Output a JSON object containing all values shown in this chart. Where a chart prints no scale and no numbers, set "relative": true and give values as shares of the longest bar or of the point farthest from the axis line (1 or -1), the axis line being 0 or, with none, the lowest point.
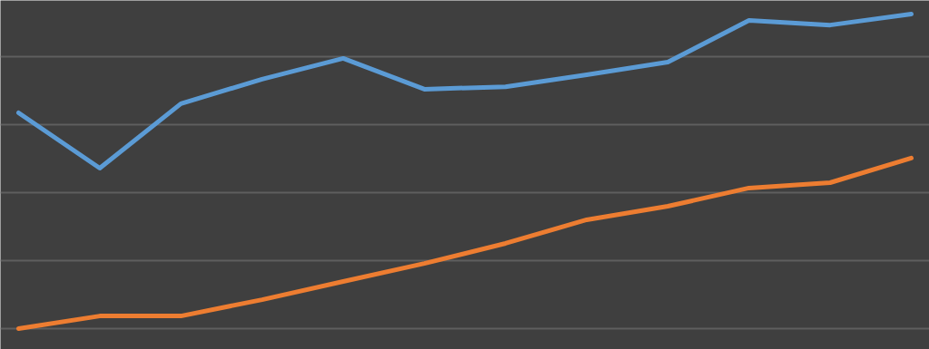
{
  "chart_data": {
    "type": "line",
    "relative": true,
    "grid": "y",
    "marker": "none",
    "line_style": "solid",
    "categories": [
      null,
      null,
      null,
      null,
      null,
      null,
      null,
      null,
      null,
      null,
      null,
      null
    ],
    "series": [
      {
        "color": "#5b9bd5",
        "values": [
          0.686,
          0.51,
          0.715,
          0.793,
          0.859,
          0.761,
          0.769,
          0.807,
          0.847,
          0.98,
          0.965,
          1
        ]
      },
      {
        "color": "#ed7d31",
        "values": [
          0,
          0.04,
          0.04,
          0.092,
          0.15,
          0.207,
          0.271,
          0.346,
          0.389,
          0.447,
          0.464,
          0.542
        ]
      }
    ]
  }
}
